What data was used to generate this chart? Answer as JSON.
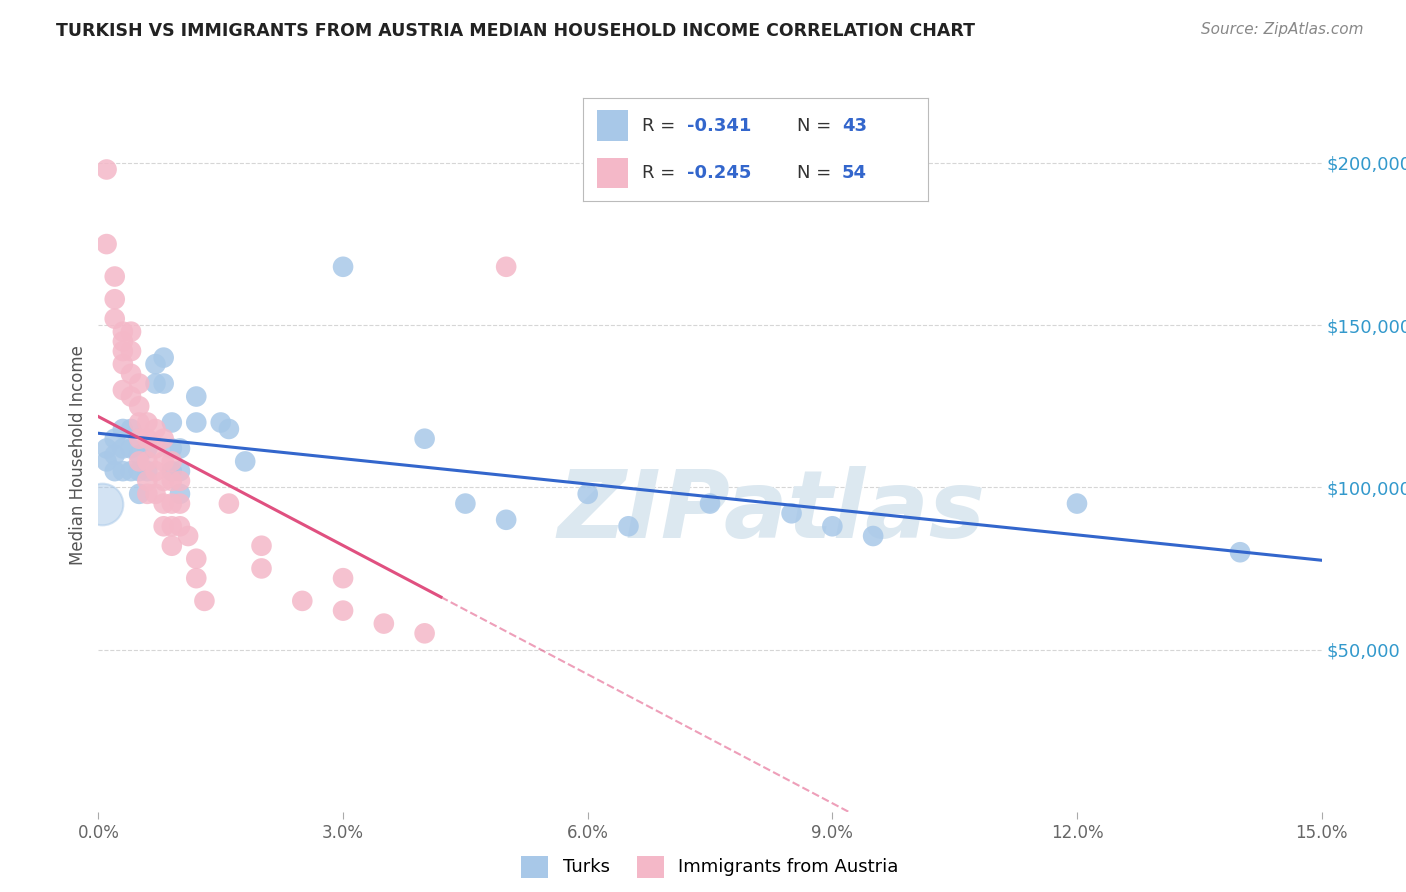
{
  "title": "TURKISH VS IMMIGRANTS FROM AUSTRIA MEDIAN HOUSEHOLD INCOME CORRELATION CHART",
  "source": "Source: ZipAtlas.com",
  "ylabel": "Median Household Income",
  "xlim": [
    0.0,
    0.15
  ],
  "ylim": [
    0,
    220000
  ],
  "legend_blue_R": "-0.341",
  "legend_blue_N": "43",
  "legend_pink_R": "-0.245",
  "legend_pink_N": "54",
  "blue_color": "#a8c8e8",
  "pink_color": "#f4b8c8",
  "blue_line_color": "#3366cc",
  "pink_line_color": "#e05080",
  "blue_dots": [
    [
      0.001,
      112000
    ],
    [
      0.001,
      108000
    ],
    [
      0.002,
      115000
    ],
    [
      0.002,
      110000
    ],
    [
      0.002,
      105000
    ],
    [
      0.003,
      118000
    ],
    [
      0.003,
      112000
    ],
    [
      0.003,
      105000
    ],
    [
      0.004,
      118000
    ],
    [
      0.004,
      112000
    ],
    [
      0.004,
      105000
    ],
    [
      0.005,
      110000
    ],
    [
      0.005,
      105000
    ],
    [
      0.005,
      98000
    ],
    [
      0.006,
      112000
    ],
    [
      0.006,
      105000
    ],
    [
      0.007,
      138000
    ],
    [
      0.007,
      132000
    ],
    [
      0.008,
      140000
    ],
    [
      0.008,
      132000
    ],
    [
      0.009,
      120000
    ],
    [
      0.009,
      112000
    ],
    [
      0.009,
      105000
    ],
    [
      0.01,
      112000
    ],
    [
      0.01,
      105000
    ],
    [
      0.01,
      98000
    ],
    [
      0.012,
      128000
    ],
    [
      0.012,
      120000
    ],
    [
      0.015,
      120000
    ],
    [
      0.016,
      118000
    ],
    [
      0.018,
      108000
    ],
    [
      0.03,
      168000
    ],
    [
      0.04,
      115000
    ],
    [
      0.045,
      95000
    ],
    [
      0.05,
      90000
    ],
    [
      0.06,
      98000
    ],
    [
      0.065,
      88000
    ],
    [
      0.075,
      95000
    ],
    [
      0.085,
      92000
    ],
    [
      0.09,
      88000
    ],
    [
      0.095,
      85000
    ],
    [
      0.12,
      95000
    ],
    [
      0.14,
      80000
    ]
  ],
  "pink_dots": [
    [
      0.001,
      198000
    ],
    [
      0.001,
      175000
    ],
    [
      0.002,
      165000
    ],
    [
      0.002,
      158000
    ],
    [
      0.002,
      152000
    ],
    [
      0.003,
      148000
    ],
    [
      0.003,
      145000
    ],
    [
      0.003,
      142000
    ],
    [
      0.003,
      138000
    ],
    [
      0.003,
      130000
    ],
    [
      0.004,
      148000
    ],
    [
      0.004,
      142000
    ],
    [
      0.004,
      135000
    ],
    [
      0.004,
      128000
    ],
    [
      0.005,
      132000
    ],
    [
      0.005,
      125000
    ],
    [
      0.005,
      120000
    ],
    [
      0.005,
      115000
    ],
    [
      0.005,
      108000
    ],
    [
      0.006,
      120000
    ],
    [
      0.006,
      115000
    ],
    [
      0.006,
      108000
    ],
    [
      0.006,
      102000
    ],
    [
      0.006,
      98000
    ],
    [
      0.007,
      118000
    ],
    [
      0.007,
      112000
    ],
    [
      0.007,
      105000
    ],
    [
      0.007,
      98000
    ],
    [
      0.008,
      115000
    ],
    [
      0.008,
      108000
    ],
    [
      0.008,
      102000
    ],
    [
      0.008,
      95000
    ],
    [
      0.008,
      88000
    ],
    [
      0.009,
      108000
    ],
    [
      0.009,
      102000
    ],
    [
      0.009,
      95000
    ],
    [
      0.009,
      88000
    ],
    [
      0.009,
      82000
    ],
    [
      0.01,
      102000
    ],
    [
      0.01,
      95000
    ],
    [
      0.01,
      88000
    ],
    [
      0.011,
      85000
    ],
    [
      0.012,
      78000
    ],
    [
      0.012,
      72000
    ],
    [
      0.013,
      65000
    ],
    [
      0.016,
      95000
    ],
    [
      0.02,
      82000
    ],
    [
      0.02,
      75000
    ],
    [
      0.025,
      65000
    ],
    [
      0.03,
      72000
    ],
    [
      0.03,
      62000
    ],
    [
      0.035,
      58000
    ],
    [
      0.04,
      55000
    ],
    [
      0.05,
      168000
    ]
  ],
  "background_color": "#ffffff",
  "grid_color": "#cccccc",
  "title_color": "#222222",
  "ytick_color": "#3399cc",
  "watermark": "ZIPatlas",
  "watermark_color": "#dce8f0"
}
